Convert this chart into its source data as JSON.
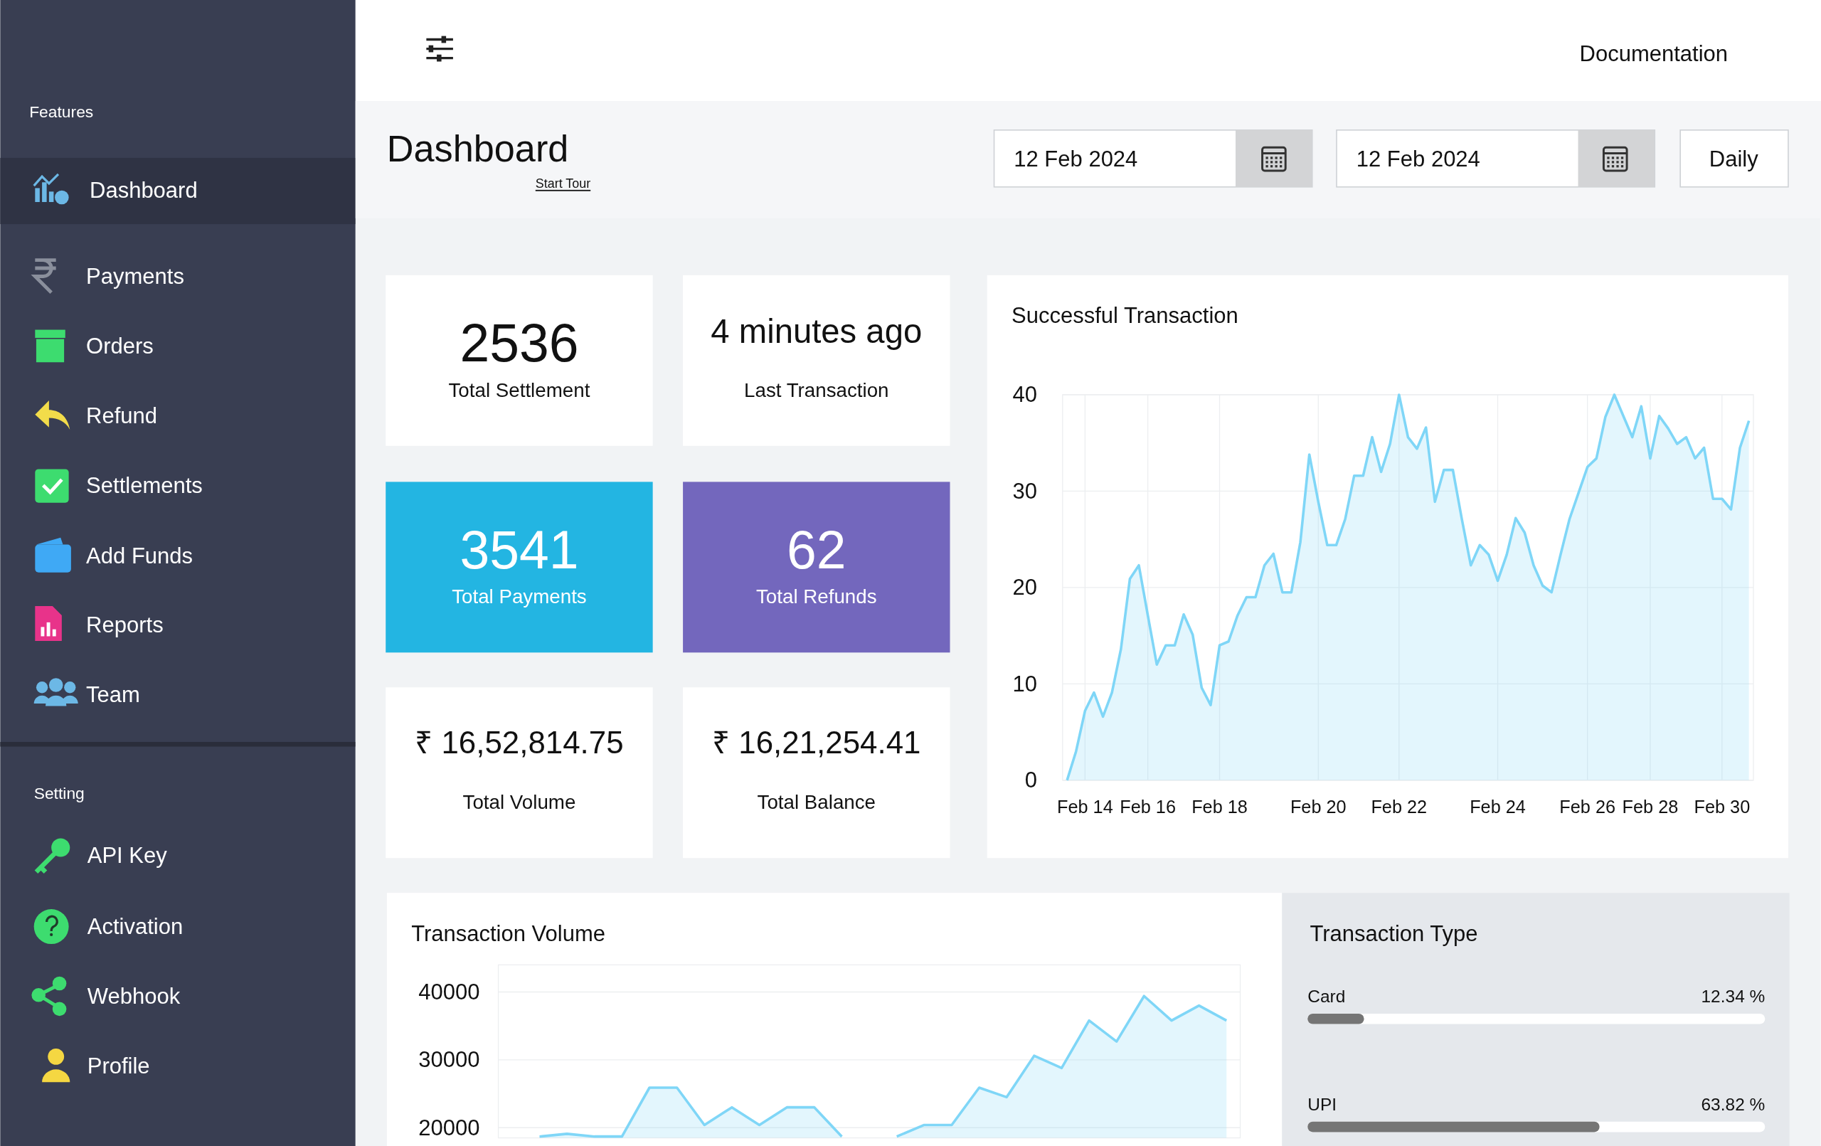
{
  "chart_data": [
    {
      "type": "other",
      "title": "Dashboard",
      "annotations": [
        "Features",
        "Dashboard",
        "Payments",
        "Orders",
        "Refund",
        "Settlements",
        "Add Funds",
        "Reports",
        "Team",
        "Setting",
        "API Key",
        "Activation",
        "Webhook",
        "Profile",
        "Documentation",
        "Start Tour",
        "12 Feb 2024",
        "12 Feb 2024",
        "Daily"
      ]
    },
    {
      "type": "other",
      "annotations": [
        "2536",
        "Total Settlement",
        "4 minutes ago",
        "Last Transaction",
        "3541",
        "Total Payments",
        "62",
        "Total Refunds",
        "₹ 16,52,814.75",
        "Total Volume",
        "₹ 16,21,254.41",
        "Total Balance"
      ],
      "colors": [
        "#ffffff",
        "#ffffff",
        "#23b5e2",
        "#7367bd",
        "#ffffff",
        "#ffffff"
      ]
    },
    {
      "type": "area",
      "title": "Successful Transaction",
      "categories": [
        null,
        null,
        "Feb 14",
        null,
        null,
        null,
        null,
        null,
        null,
        "Feb 16",
        null,
        null,
        null,
        null,
        null,
        null,
        null,
        "Feb 18",
        null,
        null,
        null,
        null,
        null,
        null,
        null,
        null,
        null,
        null,
        "Feb 20",
        null,
        null,
        null,
        null,
        null,
        null,
        null,
        null,
        "Feb 22",
        null,
        null,
        null,
        null,
        null,
        null,
        null,
        null,
        null,
        null,
        "Feb 24",
        null,
        null,
        null,
        null,
        null,
        null,
        null,
        null,
        null,
        "Feb 26",
        null,
        null,
        null,
        null,
        null,
        null,
        "Feb 28",
        null,
        null,
        null,
        null,
        null,
        null,
        null,
        "Feb 30",
        null,
        null,
        null
      ],
      "series": [
        {
          "color": "#7fd6f7",
          "values": [
            0,
            3.0,
            7.2,
            9.1,
            6.6,
            9.1,
            13.6,
            20.9,
            22.3,
            17.1,
            12.0,
            14.0,
            14.0,
            17.2,
            15.1,
            9.6,
            7.8,
            14.0,
            14.4,
            17.1,
            19.0,
            19.0,
            22.3,
            23.5,
            19.5,
            19.5,
            24.7,
            33.8,
            28.9,
            24.4,
            24.4,
            27.1,
            31.6,
            31.6,
            35.6,
            32.0,
            34.9,
            40.0,
            35.6,
            34.4,
            36.6,
            28.9,
            32.2,
            32.2,
            27.1,
            22.3,
            24.4,
            23.4,
            20.7,
            23.4,
            27.2,
            25.7,
            22.3,
            20.2,
            19.5,
            23.4,
            27.1,
            29.8,
            32.5,
            33.4,
            37.7,
            40.0,
            37.8,
            35.6,
            38.8,
            33.4,
            37.8,
            36.5,
            34.9,
            35.6,
            33.4,
            34.5,
            29.2,
            29.2,
            28.1,
            34.5,
            37.3
          ]
        }
      ],
      "ylim": [
        0,
        40
      ],
      "yticks": [
        0,
        10,
        20,
        30,
        40
      ],
      "grid": true
    },
    {
      "type": "area",
      "title": "Transaction Volume",
      "categories": [
        null,
        null,
        null,
        null,
        null,
        null,
        null,
        null,
        null,
        null,
        null,
        null,
        null,
        null,
        null,
        null,
        null,
        null,
        null,
        null,
        null,
        null,
        null,
        null,
        null,
        null,
        null
      ],
      "series": [
        {
          "color": "#7fd6f7",
          "values": [
            null,
            18700,
            19100,
            18700,
            18700,
            25900,
            25900,
            20400,
            23000,
            20400,
            23000,
            23000,
            18700,
            null,
            18700,
            20400,
            20400,
            25900,
            24500,
            30600,
            28800,
            35800,
            32700,
            39400,
            35800,
            38000,
            35800
          ]
        }
      ],
      "ylim": [
        18500,
        44000
      ],
      "yticks": [
        20000,
        30000,
        40000
      ],
      "tick_labels": "y",
      "grid": "y"
    },
    {
      "type": "bar",
      "orientation": "horizontal",
      "title": "Transaction Type",
      "categories": [
        "Card",
        "UPI"
      ],
      "values": [
        12.34,
        63.82
      ],
      "value_labels": [
        "12.34 %",
        "63.82 %"
      ],
      "color": "#757575",
      "xlim": [
        0,
        100
      ],
      "tick_labels": false
    }
  ]
}
